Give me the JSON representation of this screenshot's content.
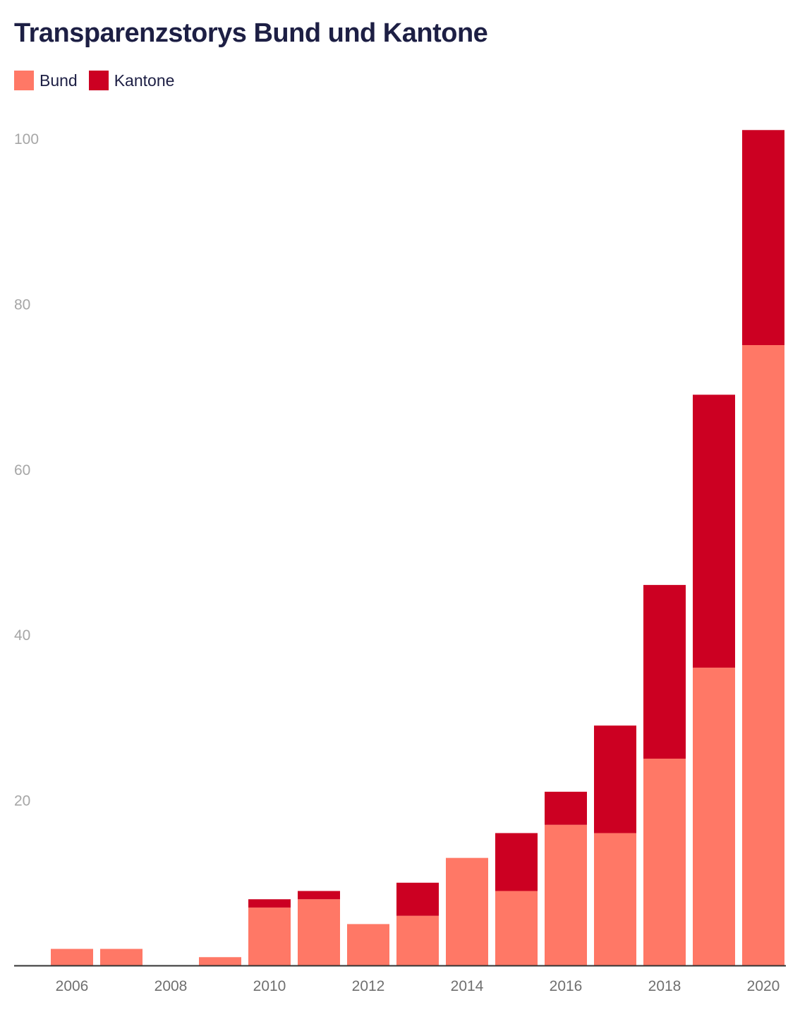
{
  "chart_data": {
    "type": "bar",
    "stacked": true,
    "title": "Transparenzstorys Bund und Kantone",
    "xlabel": "",
    "ylabel": "",
    "ylim": [
      0,
      100
    ],
    "yticks": [
      20,
      40,
      60,
      80,
      100
    ],
    "categories": [
      2006,
      2007,
      2008,
      2009,
      2010,
      2011,
      2012,
      2013,
      2014,
      2015,
      2016,
      2017,
      2018,
      2019,
      2020
    ],
    "xtick_labels": [
      "2006",
      "2008",
      "2010",
      "2012",
      "2014",
      "2016",
      "2018",
      "2020"
    ],
    "legend_position": "top-left",
    "grid": false,
    "series": [
      {
        "name": "Bund",
        "color": "#ff7866",
        "values": [
          2,
          2,
          0,
          1,
          7,
          8,
          5,
          6,
          13,
          9,
          17,
          16,
          25,
          36,
          75
        ]
      },
      {
        "name": "Kantone",
        "color": "#cc0022",
        "values": [
          0,
          0,
          0,
          0,
          1,
          1,
          0,
          4,
          0,
          7,
          4,
          13,
          21,
          33,
          26
        ]
      }
    ]
  }
}
